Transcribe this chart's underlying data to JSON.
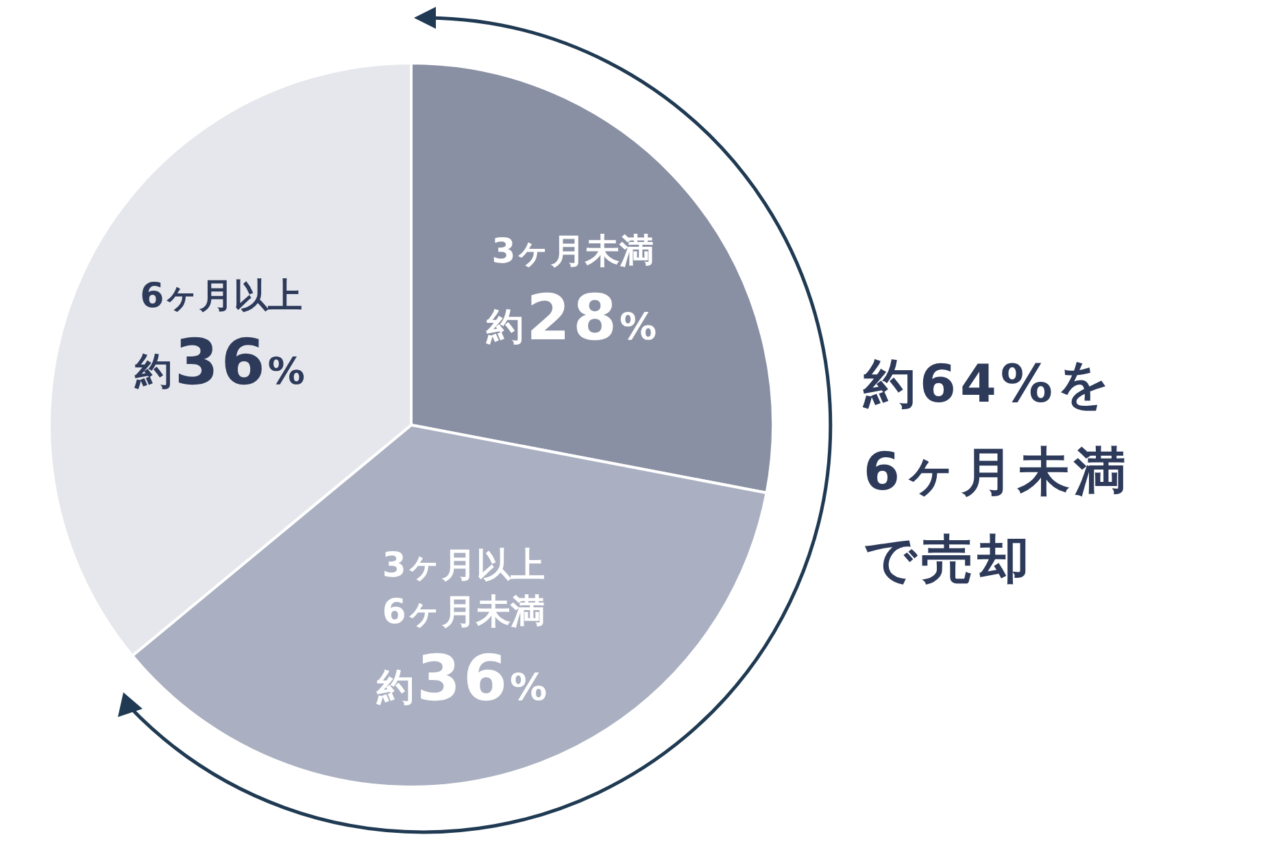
{
  "chart_data": {
    "type": "pie",
    "categories": [
      "3ヶ月未満",
      "3ヶ月以上\n6ヶ月未満",
      "6ヶ月以上"
    ],
    "values": [
      28,
      36,
      36
    ],
    "colors": [
      "#8a90a3",
      "#aab0c1",
      "#e6e7ec"
    ],
    "value_labels": [
      "約28%",
      "約36%",
      "約36%"
    ],
    "legend": false,
    "annotations": [
      "約64%を",
      "6ヶ月未満",
      "で売却"
    ]
  }
}
